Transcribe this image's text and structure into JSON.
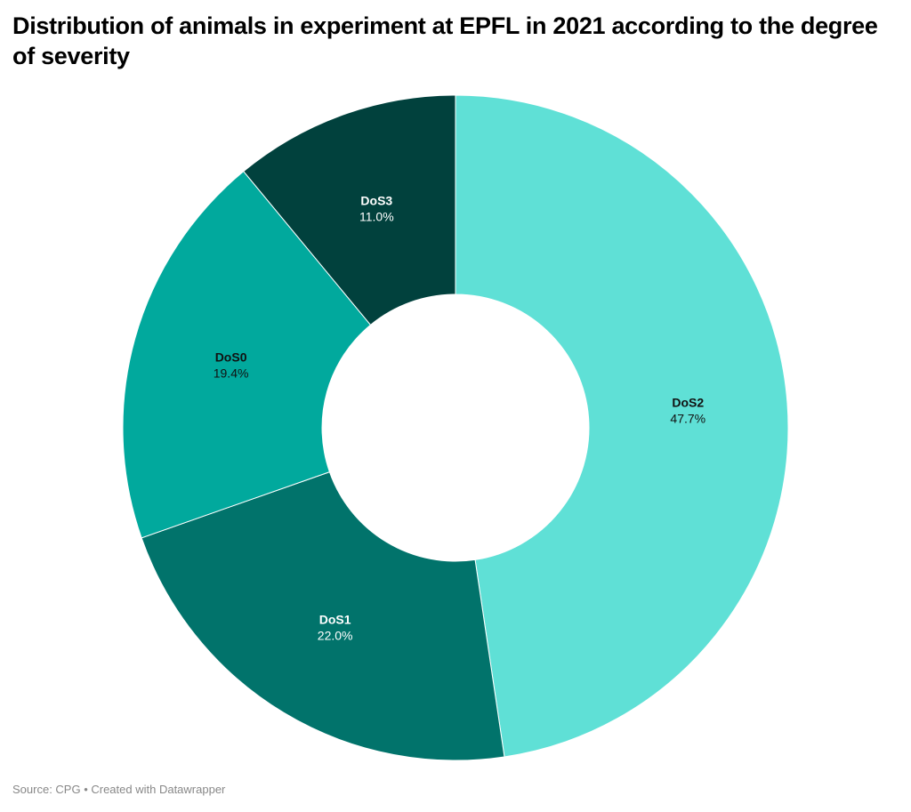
{
  "header": {
    "title": "Distribution of animals in experiment at EPFL in 2021 according to the degree of severity"
  },
  "footer": {
    "source_label": "Source:",
    "source": "CPG",
    "separator": "•",
    "credit": "Created with Datawrapper",
    "text": "Source: CPG • Created with Datawrapper"
  },
  "chart_data": {
    "type": "pie",
    "variant": "donut",
    "title": "Distribution of animals in experiment at EPFL in 2021 according to the degree of severity",
    "start": "top, clockwise",
    "slices": [
      {
        "label": "DoS2",
        "value": 47.7,
        "display": "47.7%",
        "color": "#5fe0d6",
        "text_color": "#111111"
      },
      {
        "label": "DoS1",
        "value": 22.0,
        "display": "22.0%",
        "color": "#01736b",
        "text_color": "#ffffff"
      },
      {
        "label": "DoS0",
        "value": 19.4,
        "display": "19.4%",
        "color": "#01a99d",
        "text_color": "#111111"
      },
      {
        "label": "DoS3",
        "value": 11.0,
        "display": "11.0%",
        "color": "#01413d",
        "text_color": "#ffffff"
      }
    ],
    "legend": "none (labels inside slices)"
  }
}
